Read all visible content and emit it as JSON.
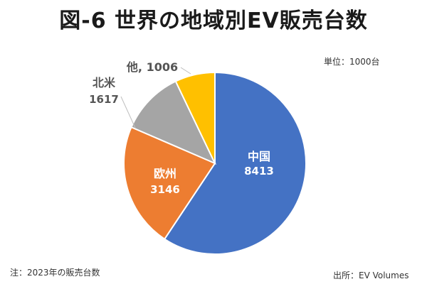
{
  "title": "図-6 世界の地域別EV販売台数",
  "unit_note": "単位：1000台",
  "footnote": "注：2023年の販売台数",
  "source": "出所：EV Volumes",
  "chart_data": {
    "type": "pie",
    "title": "図-6 世界の地域別EV販売台数",
    "unit": "1000台",
    "start": "12 o'clock",
    "direction": "clockwise",
    "slices": [
      {
        "label": "中国",
        "value": 8413,
        "value_text": "8413",
        "color": "#4472c4"
      },
      {
        "label": "欧州",
        "value": 3146,
        "value_text": "3146",
        "color": "#ed7d31"
      },
      {
        "label": "北米",
        "value": 1617,
        "value_text": "1617",
        "color": "#a5a5a5"
      },
      {
        "label": "他,",
        "value": 1006,
        "value_text": "1006",
        "color": "#ffc000"
      }
    ]
  }
}
